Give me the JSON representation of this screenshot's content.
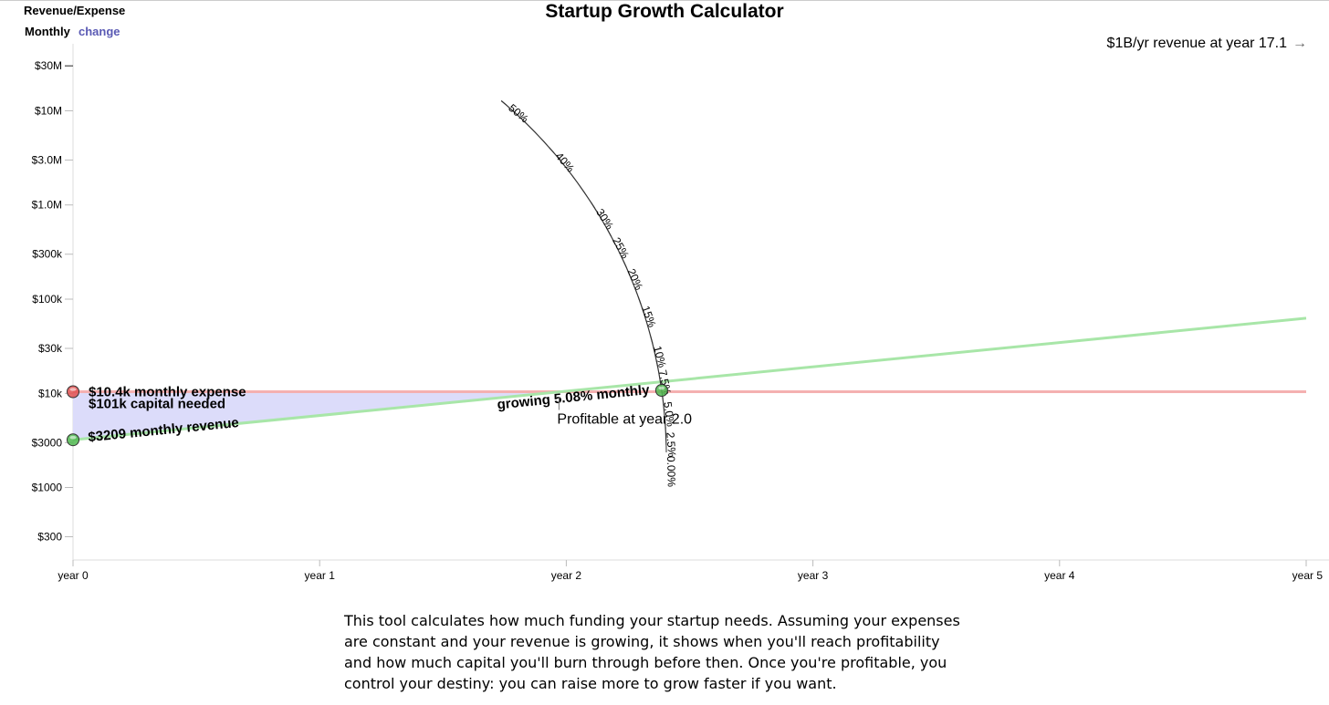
{
  "header": {
    "panel_title": "Revenue/Expense",
    "mode": "Monthly",
    "change_label": "change",
    "title": "Startup Growth Calculator",
    "billion_note": "$1B/yr revenue at year 17.1",
    "billion_arrow": "→"
  },
  "chart_data": {
    "type": "line",
    "title": "Startup Growth Calculator",
    "y_scale": "log",
    "x_ticks": [
      {
        "value": 0,
        "label": "year 0"
      },
      {
        "value": 1,
        "label": "year 1"
      },
      {
        "value": 2,
        "label": "year 2"
      },
      {
        "value": 3,
        "label": "year 3"
      },
      {
        "value": 4,
        "label": "year 4"
      },
      {
        "value": 5,
        "label": "year 5"
      }
    ],
    "y_ticks": [
      {
        "value": 300,
        "label": "$300"
      },
      {
        "value": 1000,
        "label": "$1000"
      },
      {
        "value": 3000,
        "label": "$3000"
      },
      {
        "value": 10000,
        "label": "$10k"
      },
      {
        "value": 30000,
        "label": "$30k"
      },
      {
        "value": 100000,
        "label": "$100k"
      },
      {
        "value": 300000,
        "label": "$300k"
      },
      {
        "value": 1000000,
        "label": "$1.0M"
      },
      {
        "value": 3000000,
        "label": "$3.0M"
      },
      {
        "value": 10000000,
        "label": "$10M"
      },
      {
        "value": 30000000,
        "label": "$30M"
      }
    ],
    "xlim": [
      0,
      5
    ],
    "ylim": [
      170,
      45000000
    ],
    "series": [
      {
        "name": "revenue",
        "color": "#a8e6a8",
        "start_value": 3209,
        "monthly_growth": 0.0508,
        "x_range": [
          0,
          5
        ]
      },
      {
        "name": "expense",
        "color": "#f4b0b0",
        "value": 10400,
        "x_range": [
          0,
          5
        ]
      }
    ],
    "capital_area_color": "#dcdcfa",
    "revenue_label": "$3209 monthly revenue",
    "expense_label": "$10.4k monthly expense",
    "capital_label": "$101k capital needed",
    "growth_label": "growing 5.08% monthly",
    "profitable_label": "Profitable at year 2.0",
    "profitable_year": 2.0,
    "growth_dial": {
      "current": 5.08,
      "ticks": [
        {
          "value": 0,
          "label": "0.00%"
        },
        {
          "value": 2.5,
          "label": "2.5%"
        },
        {
          "value": 5,
          "label": "5.0%"
        },
        {
          "value": 7.5,
          "label": "7.5%"
        },
        {
          "value": 10,
          "label": "10%"
        },
        {
          "value": 15,
          "label": "15%"
        },
        {
          "value": 20,
          "label": "20%"
        },
        {
          "value": 25,
          "label": "25%"
        },
        {
          "value": 30,
          "label": "30%"
        },
        {
          "value": 40,
          "label": "40%"
        },
        {
          "value": 50,
          "label": "50%"
        }
      ]
    },
    "handle_colors": {
      "expense": "#e05050",
      "revenue": "#50b850"
    }
  },
  "description": "This tool calculates how much funding your startup needs. Assuming your expenses are constant and your revenue is growing, it shows when you'll reach profitability and how much capital you'll burn through before then. Once you're profitable, you control your destiny: you can raise more to grow faster if you want."
}
